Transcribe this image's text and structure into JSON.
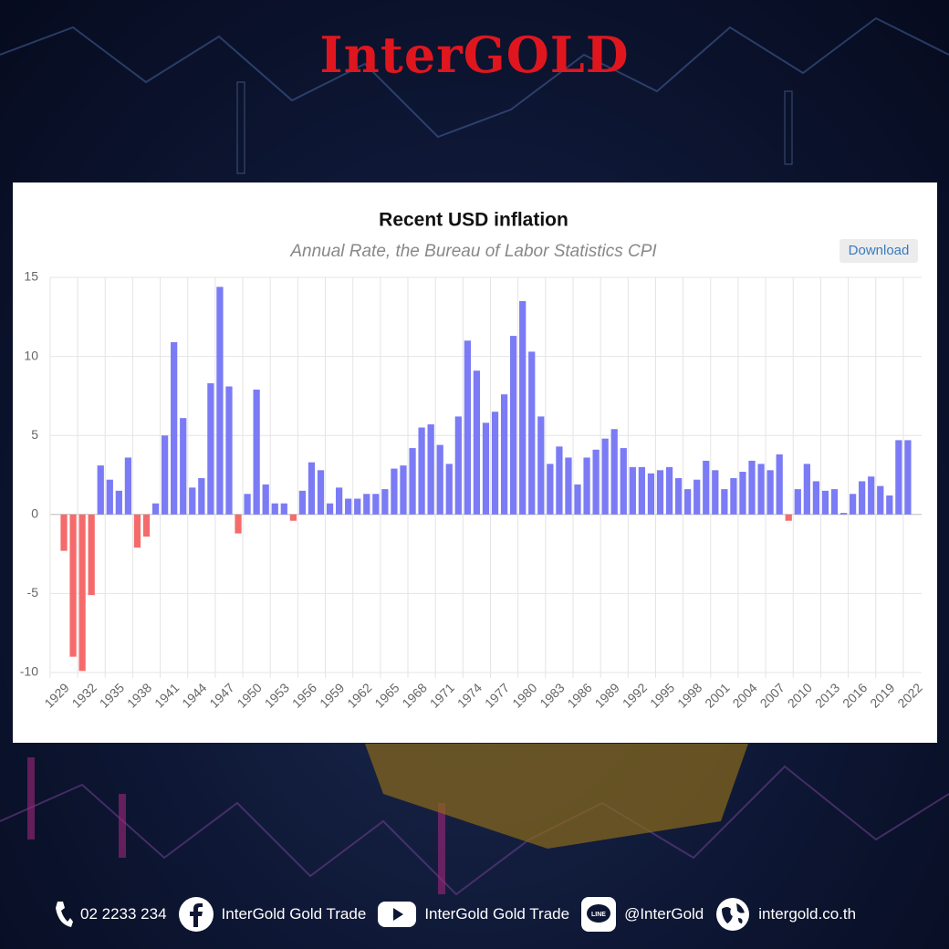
{
  "header": {
    "logo": "InterGOLD"
  },
  "chart_data": {
    "type": "bar",
    "title": "Recent USD inflation",
    "subtitle": "Annual Rate, the Bureau of Labor Statistics CPI",
    "categories": [
      "1929",
      null,
      null,
      "1932",
      null,
      null,
      "1935",
      null,
      null,
      "1938",
      null,
      null,
      "1941",
      null,
      null,
      "1944",
      null,
      null,
      "1947",
      null,
      null,
      "1950",
      null,
      null,
      "1953",
      null,
      null,
      "1956",
      null,
      null,
      "1959",
      null,
      null,
      "1962",
      null,
      null,
      "1965",
      null,
      null,
      "1968",
      null,
      null,
      "1971",
      null,
      null,
      "1974",
      null,
      null,
      "1977",
      null,
      null,
      "1980",
      null,
      null,
      "1983",
      null,
      null,
      "1986",
      null,
      null,
      "1989",
      null,
      null,
      "1992",
      null,
      null,
      "1995",
      null,
      null,
      "1998",
      null,
      null,
      "2001",
      null,
      null,
      "2004",
      null,
      null,
      "2007",
      null,
      null,
      "2010",
      null,
      null,
      "2013",
      null,
      null,
      "2016",
      null,
      null,
      "2019",
      null,
      null,
      "2022"
    ],
    "values": [
      -2.3,
      -9.0,
      -9.9,
      -5.1,
      3.1,
      2.2,
      1.5,
      3.6,
      -2.1,
      -1.4,
      0.7,
      5.0,
      10.9,
      6.1,
      1.7,
      2.3,
      8.3,
      14.4,
      8.1,
      -1.2,
      1.3,
      7.9,
      1.9,
      0.7,
      0.7,
      -0.4,
      1.5,
      3.3,
      2.8,
      0.7,
      1.7,
      1.0,
      1.0,
      1.3,
      1.3,
      1.6,
      2.9,
      3.1,
      4.2,
      5.5,
      5.7,
      4.4,
      3.2,
      6.2,
      11.0,
      9.1,
      5.8,
      6.5,
      7.6,
      11.3,
      13.5,
      10.3,
      6.2,
      3.2,
      4.3,
      3.6,
      1.9,
      3.6,
      4.1,
      4.8,
      5.4,
      4.2,
      3.0,
      3.0,
      2.6,
      2.8,
      3.0,
      2.3,
      1.6,
      2.2,
      3.4,
      2.8,
      1.6,
      2.3,
      2.7,
      3.4,
      3.2,
      2.8,
      3.8,
      -0.4,
      1.6,
      3.2,
      2.1,
      1.5,
      1.6,
      0.1,
      1.3,
      2.1,
      2.4,
      1.8,
      1.2,
      4.7,
      4.7,
      null
    ],
    "color": "#7b7bf5",
    "negative_color": "#f56b6b",
    "ylim": [
      -10,
      15
    ],
    "yticks": [
      -10,
      -5,
      0,
      5,
      10,
      15
    ],
    "grid": true
  },
  "button": "Download",
  "footer": {
    "phone": "02 2233 234",
    "facebook": "InterGold Gold Trade",
    "youtube": "InterGold Gold Trade",
    "line": "@InterGold",
    "website": "intergold.co.th"
  }
}
